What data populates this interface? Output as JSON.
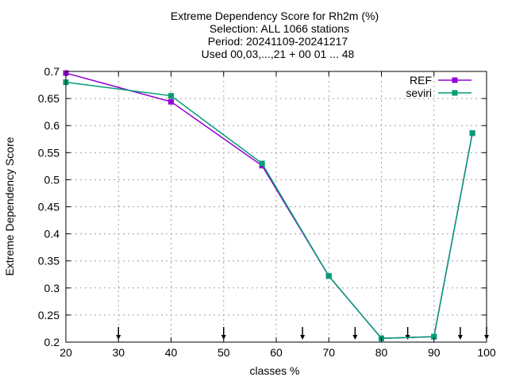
{
  "chart_data": {
    "type": "line",
    "title_lines": [
      "Extreme Dependency Score  for Rh2m (%)",
      "Selection: ALL   1066 stations",
      "Period: 20241109-20241217",
      "Used 00,03,...,21 + 00 01 ... 48"
    ],
    "xlabel": "classes %",
    "ylabel": "Extreme Dependency Score",
    "xlim": [
      20,
      100
    ],
    "ylim": [
      0.2,
      0.7
    ],
    "x_ticks": [
      20,
      30,
      40,
      50,
      60,
      70,
      80,
      90,
      100
    ],
    "y_ticks": [
      0.2,
      0.25,
      0.3,
      0.35,
      0.4,
      0.45,
      0.5,
      0.55,
      0.6,
      0.65,
      0.7
    ],
    "grid": true,
    "legend_position": "top-right",
    "class_markers_x": [
      30,
      50,
      65,
      75,
      85,
      95,
      100
    ],
    "series": [
      {
        "name": "REF",
        "color": "#9400d3",
        "marker": "square",
        "x": [
          20,
          40,
          57.3,
          70,
          80,
          90,
          97.3
        ],
        "y": [
          0.697,
          0.644,
          0.526,
          0.322,
          0.207,
          0.21,
          0.586
        ]
      },
      {
        "name": "seviri",
        "color": "#009e73",
        "marker": "square",
        "x": [
          20,
          40,
          57.3,
          70,
          80,
          90,
          97.3
        ],
        "y": [
          0.68,
          0.655,
          0.53,
          0.322,
          0.207,
          0.21,
          0.586
        ]
      }
    ]
  }
}
